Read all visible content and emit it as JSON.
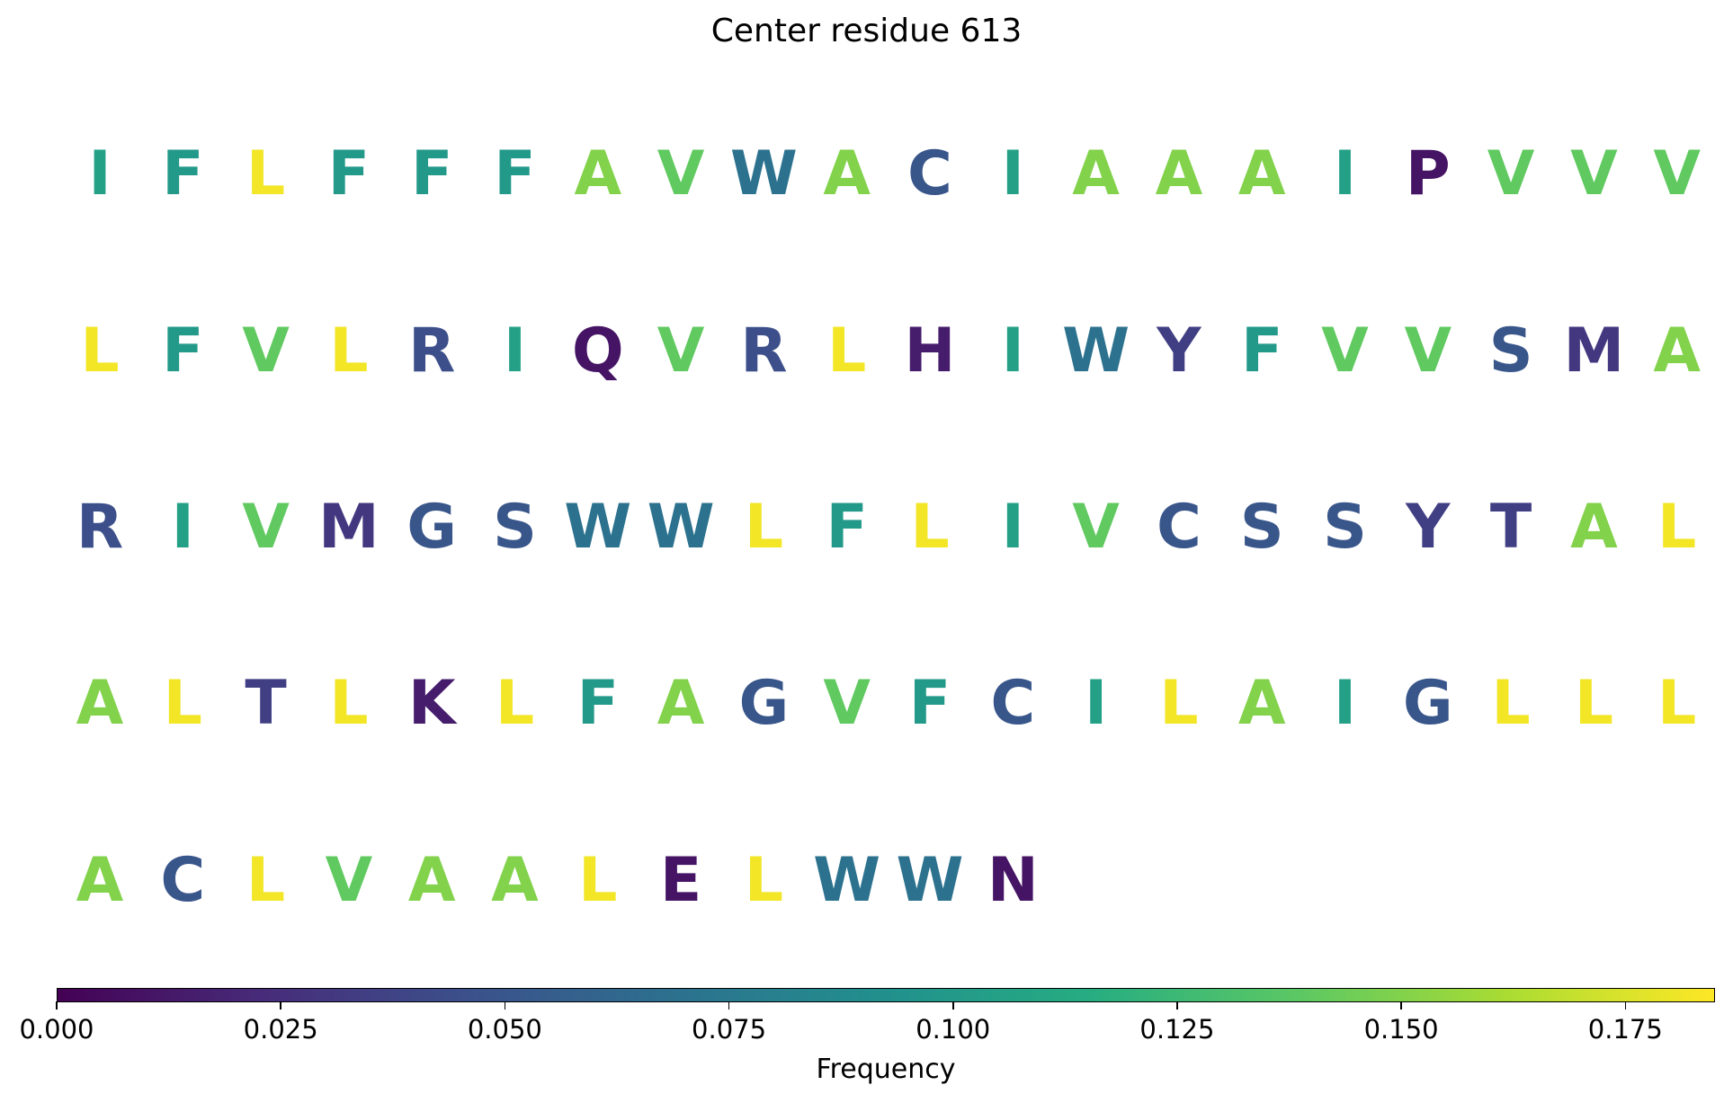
{
  "chart_data": {
    "type": "heatmap",
    "title": "Center residue 613",
    "colorbar": {
      "label": "Frequency",
      "range": [
        0,
        0.185
      ],
      "ticks": [
        "0.000",
        "0.025",
        "0.050",
        "0.075",
        "0.100",
        "0.125",
        "0.150",
        "0.175"
      ],
      "tick_values": [
        0,
        0.025,
        0.05,
        0.075,
        0.1,
        0.125,
        0.15,
        0.175
      ],
      "colormap": "viridis"
    },
    "columns_per_row": 20,
    "residues": [
      {
        "aa": "I",
        "freq": 0.105
      },
      {
        "aa": "F",
        "freq": 0.1
      },
      {
        "aa": "L",
        "freq": 0.182
      },
      {
        "aa": "F",
        "freq": 0.1
      },
      {
        "aa": "F",
        "freq": 0.1
      },
      {
        "aa": "F",
        "freq": 0.1
      },
      {
        "aa": "A",
        "freq": 0.15
      },
      {
        "aa": "V",
        "freq": 0.14
      },
      {
        "aa": "W",
        "freq": 0.07
      },
      {
        "aa": "A",
        "freq": 0.15
      },
      {
        "aa": "C",
        "freq": 0.05
      },
      {
        "aa": "I",
        "freq": 0.105
      },
      {
        "aa": "A",
        "freq": 0.15
      },
      {
        "aa": "A",
        "freq": 0.15
      },
      {
        "aa": "A",
        "freq": 0.15
      },
      {
        "aa": "I",
        "freq": 0.105
      },
      {
        "aa": "P",
        "freq": 0.01
      },
      {
        "aa": "V",
        "freq": 0.14
      },
      {
        "aa": "V",
        "freq": 0.14
      },
      {
        "aa": "V",
        "freq": 0.14
      },
      {
        "aa": "L",
        "freq": 0.182
      },
      {
        "aa": "F",
        "freq": 0.1
      },
      {
        "aa": "V",
        "freq": 0.14
      },
      {
        "aa": "L",
        "freq": 0.182
      },
      {
        "aa": "R",
        "freq": 0.045
      },
      {
        "aa": "I",
        "freq": 0.105
      },
      {
        "aa": "Q",
        "freq": 0.01
      },
      {
        "aa": "V",
        "freq": 0.14
      },
      {
        "aa": "R",
        "freq": 0.045
      },
      {
        "aa": "L",
        "freq": 0.182
      },
      {
        "aa": "H",
        "freq": 0.015
      },
      {
        "aa": "I",
        "freq": 0.105
      },
      {
        "aa": "W",
        "freq": 0.07
      },
      {
        "aa": "Y",
        "freq": 0.035
      },
      {
        "aa": "F",
        "freq": 0.1
      },
      {
        "aa": "V",
        "freq": 0.14
      },
      {
        "aa": "V",
        "freq": 0.14
      },
      {
        "aa": "S",
        "freq": 0.05
      },
      {
        "aa": "M",
        "freq": 0.03
      },
      {
        "aa": "A",
        "freq": 0.15
      },
      {
        "aa": "R",
        "freq": 0.045
      },
      {
        "aa": "I",
        "freq": 0.105
      },
      {
        "aa": "V",
        "freq": 0.14
      },
      {
        "aa": "M",
        "freq": 0.03
      },
      {
        "aa": "G",
        "freq": 0.05
      },
      {
        "aa": "S",
        "freq": 0.05
      },
      {
        "aa": "W",
        "freq": 0.07
      },
      {
        "aa": "W",
        "freq": 0.07
      },
      {
        "aa": "L",
        "freq": 0.182
      },
      {
        "aa": "F",
        "freq": 0.1
      },
      {
        "aa": "L",
        "freq": 0.182
      },
      {
        "aa": "I",
        "freq": 0.105
      },
      {
        "aa": "V",
        "freq": 0.14
      },
      {
        "aa": "C",
        "freq": 0.05
      },
      {
        "aa": "S",
        "freq": 0.05
      },
      {
        "aa": "S",
        "freq": 0.05
      },
      {
        "aa": "Y",
        "freq": 0.035
      },
      {
        "aa": "T",
        "freq": 0.035
      },
      {
        "aa": "A",
        "freq": 0.15
      },
      {
        "aa": "L",
        "freq": 0.182
      },
      {
        "aa": "A",
        "freq": 0.15
      },
      {
        "aa": "L",
        "freq": 0.182
      },
      {
        "aa": "T",
        "freq": 0.035
      },
      {
        "aa": "L",
        "freq": 0.182
      },
      {
        "aa": "K",
        "freq": 0.015
      },
      {
        "aa": "L",
        "freq": 0.182
      },
      {
        "aa": "F",
        "freq": 0.1
      },
      {
        "aa": "A",
        "freq": 0.15
      },
      {
        "aa": "G",
        "freq": 0.05
      },
      {
        "aa": "V",
        "freq": 0.14
      },
      {
        "aa": "F",
        "freq": 0.1
      },
      {
        "aa": "C",
        "freq": 0.05
      },
      {
        "aa": "I",
        "freq": 0.105
      },
      {
        "aa": "L",
        "freq": 0.182
      },
      {
        "aa": "A",
        "freq": 0.15
      },
      {
        "aa": "I",
        "freq": 0.105
      },
      {
        "aa": "G",
        "freq": 0.05
      },
      {
        "aa": "L",
        "freq": 0.182
      },
      {
        "aa": "L",
        "freq": 0.182
      },
      {
        "aa": "L",
        "freq": 0.182
      },
      {
        "aa": "A",
        "freq": 0.15
      },
      {
        "aa": "C",
        "freq": 0.05
      },
      {
        "aa": "L",
        "freq": 0.182
      },
      {
        "aa": "V",
        "freq": 0.14
      },
      {
        "aa": "A",
        "freq": 0.15
      },
      {
        "aa": "A",
        "freq": 0.15
      },
      {
        "aa": "L",
        "freq": 0.182
      },
      {
        "aa": "E",
        "freq": 0.01
      },
      {
        "aa": "L",
        "freq": 0.182
      },
      {
        "aa": "W",
        "freq": 0.07
      },
      {
        "aa": "W",
        "freq": 0.07
      },
      {
        "aa": "N",
        "freq": 0.01
      }
    ]
  }
}
